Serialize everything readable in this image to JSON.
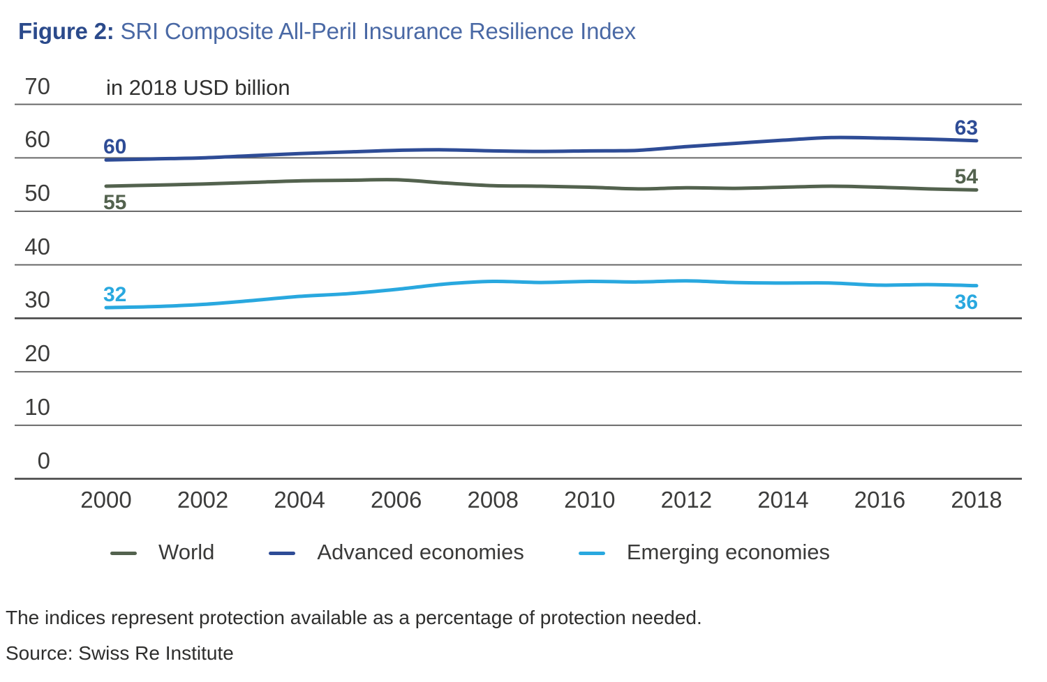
{
  "header": {
    "figure_label": "Figure 2:",
    "title": "SRI Composite All-Peril Insurance Resilience Index"
  },
  "chart": {
    "unit_label": "in 2018 USD billion"
  },
  "chart_data": {
    "type": "line",
    "title": "SRI Composite All-Peril Insurance Resilience Index",
    "xlabel": "",
    "ylabel": "in 2018 USD billion",
    "ylim": [
      0,
      70
    ],
    "grid": true,
    "legend_position": "bottom",
    "x": [
      2000,
      2001,
      2002,
      2003,
      2004,
      2005,
      2006,
      2007,
      2008,
      2009,
      2010,
      2011,
      2012,
      2013,
      2014,
      2015,
      2016,
      2017,
      2018
    ],
    "xticks": [
      2000,
      2002,
      2004,
      2006,
      2008,
      2010,
      2012,
      2014,
      2016,
      2018
    ],
    "yticks": [
      70,
      60,
      50,
      40,
      30,
      20,
      10,
      0
    ],
    "series": [
      {
        "name": "World",
        "color": "#53624E",
        "values": [
          54.7,
          54.9,
          55.1,
          55.4,
          55.7,
          55.8,
          55.9,
          55.3,
          54.8,
          54.7,
          54.5,
          54.2,
          54.4,
          54.3,
          54.5,
          54.7,
          54.5,
          54.2,
          54.0
        ]
      },
      {
        "name": "Advanced economies",
        "color": "#2E4C96",
        "values": [
          59.6,
          59.8,
          60.0,
          60.4,
          60.8,
          61.1,
          61.4,
          61.5,
          61.3,
          61.2,
          61.3,
          61.4,
          62.1,
          62.7,
          63.3,
          63.8,
          63.7,
          63.5,
          63.2
        ]
      },
      {
        "name": "Emerging economies",
        "color": "#29A8DF",
        "values": [
          32.0,
          32.2,
          32.6,
          33.3,
          34.1,
          34.6,
          35.4,
          36.4,
          36.9,
          36.7,
          36.9,
          36.8,
          37.0,
          36.7,
          36.6,
          36.6,
          36.2,
          36.3,
          36.1
        ]
      }
    ],
    "annotations": [
      {
        "series": "Advanced economies",
        "x": 2000,
        "label": "60",
        "position": "above"
      },
      {
        "series": "World",
        "x": 2000,
        "label": "55",
        "position": "below"
      },
      {
        "series": "Emerging economies",
        "x": 2000,
        "label": "32",
        "position": "above"
      },
      {
        "series": "Advanced economies",
        "x": 2018,
        "label": "63",
        "position": "above"
      },
      {
        "series": "World",
        "x": 2018,
        "label": "54",
        "position": "above"
      },
      {
        "series": "Emerging economies",
        "x": 2018,
        "label": "36",
        "position": "below"
      }
    ]
  },
  "legend": {
    "items": [
      {
        "label": "World",
        "color": "#53624E"
      },
      {
        "label": "Advanced economies",
        "color": "#2E4C96"
      },
      {
        "label": "Emerging economies",
        "color": "#29A8DF"
      }
    ]
  },
  "footnotes": {
    "note": "The indices represent protection available as a percentage of protection needed.",
    "source": "Source: Swiss Re Institute"
  }
}
